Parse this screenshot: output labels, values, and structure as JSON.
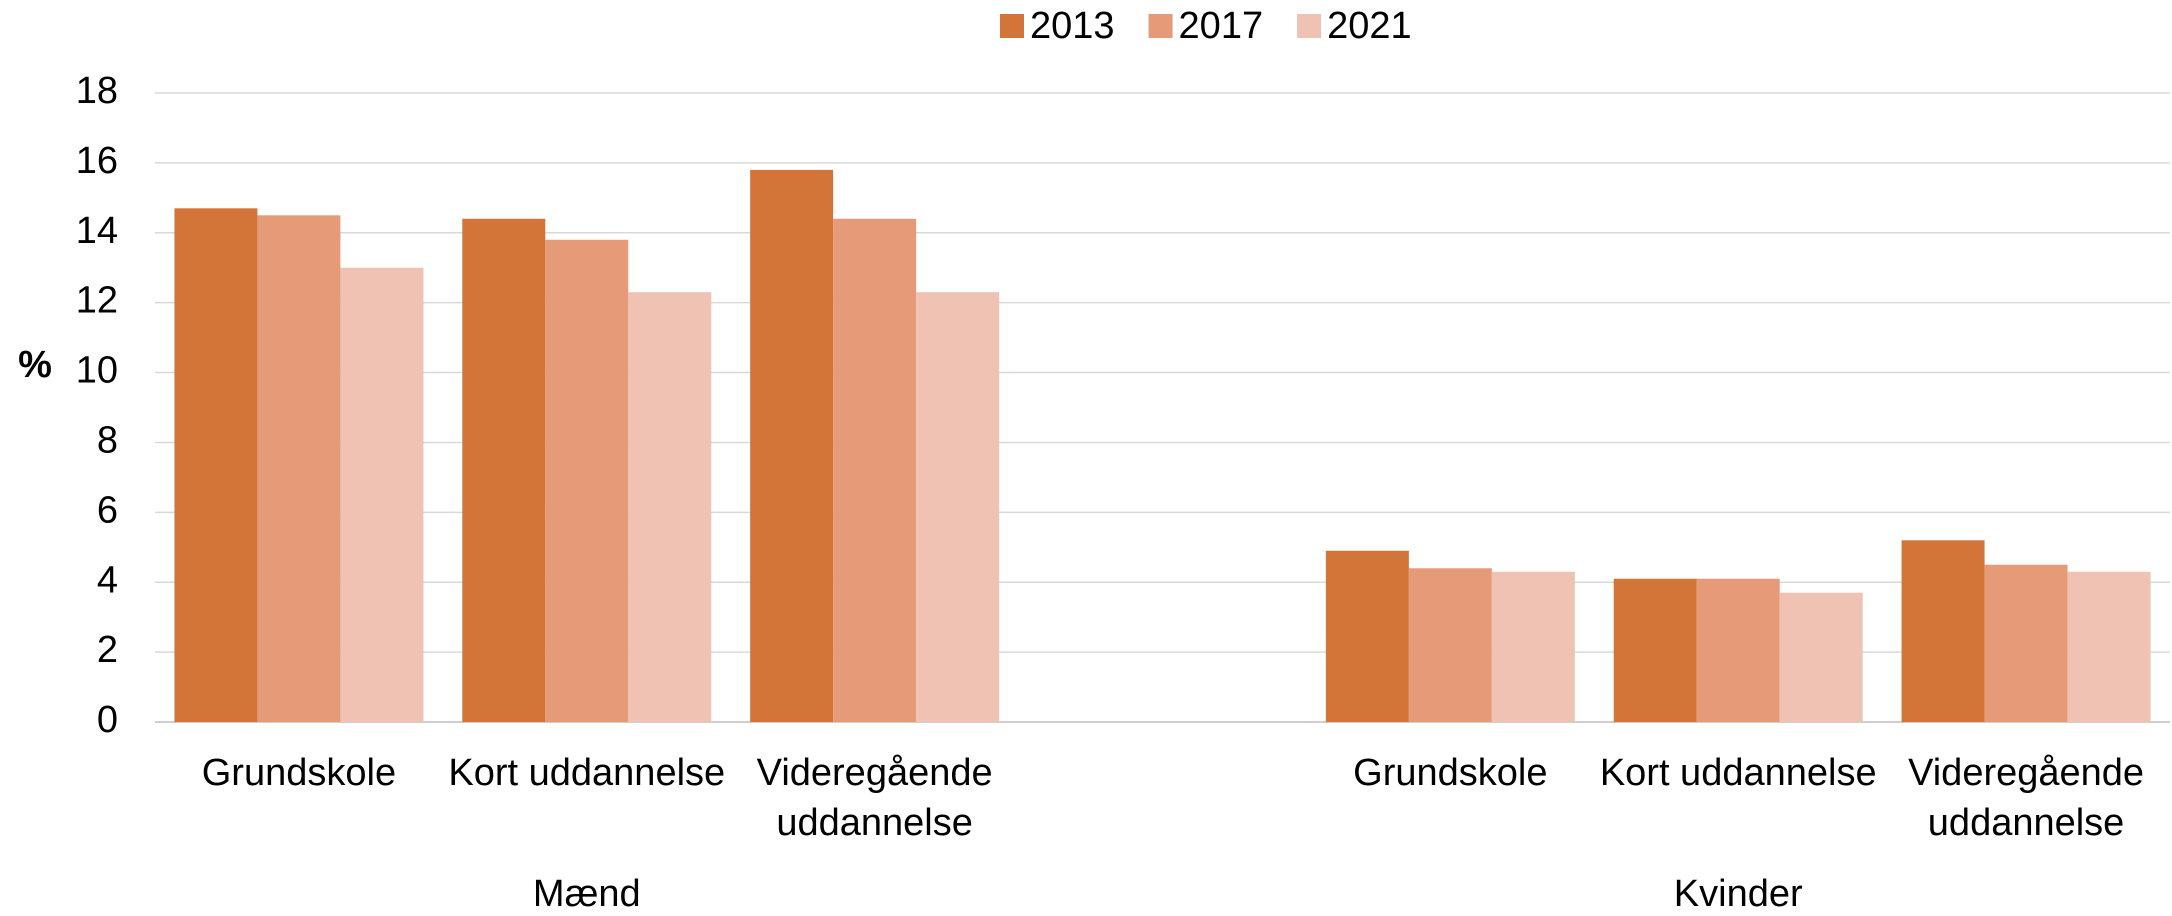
{
  "chart_data": {
    "type": "bar",
    "y_label": "%",
    "categories": [
      "Grundskole",
      "Kort uddannelse",
      "Videregående uddannelse",
      null,
      "Grundskole",
      "Kort uddannelse",
      "Videregående uddannelse"
    ],
    "groups": [
      "Mænd",
      "Kvinder"
    ],
    "series": [
      {
        "name": "2013",
        "color": "#d37538",
        "values": [
          14.7,
          14.4,
          15.8,
          null,
          4.9,
          4.1,
          5.2
        ]
      },
      {
        "name": "2017",
        "color": "#e69b78",
        "values": [
          14.5,
          13.8,
          14.4,
          null,
          4.4,
          4.1,
          4.5
        ]
      },
      {
        "name": "2021",
        "color": "#efc2b4",
        "values": [
          13.0,
          12.3,
          12.3,
          null,
          4.3,
          3.7,
          4.3
        ]
      }
    ],
    "ylim": [
      0,
      18
    ],
    "yticks": [
      0,
      2,
      4,
      6,
      8,
      10,
      12,
      14,
      16,
      18
    ],
    "grid": true,
    "legend": "top"
  }
}
